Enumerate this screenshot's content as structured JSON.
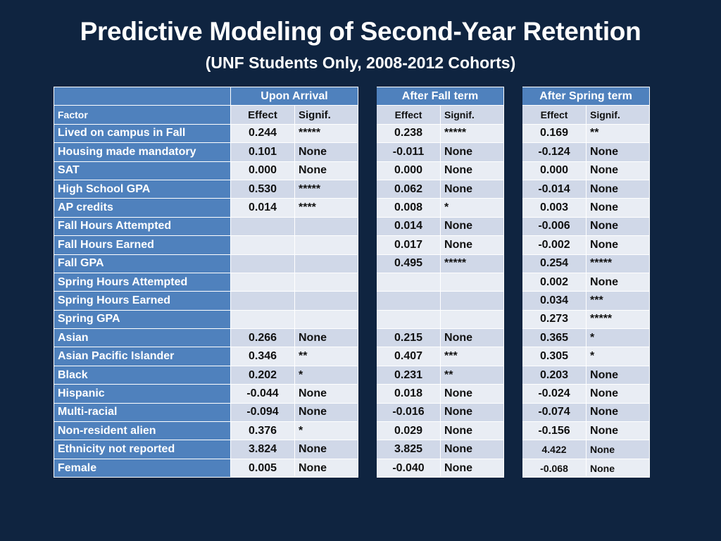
{
  "title": "Predictive Modeling of Second-Year Retention",
  "subtitle": "(UNF Students Only, 2008-2012 Cohorts)",
  "groups": [
    "Upon Arrival",
    "After Fall term",
    "After Spring term"
  ],
  "subheader": {
    "factor": "Factor",
    "effect": "Effect",
    "signif": "Signif."
  },
  "rows": [
    {
      "factor": "Lived on campus in Fall",
      "cells": [
        "0.244",
        "*****",
        "0.238",
        "*****",
        "0.169",
        "**"
      ]
    },
    {
      "factor": "Housing made mandatory",
      "cells": [
        "0.101",
        "None",
        "-0.011",
        "None",
        "-0.124",
        "None"
      ]
    },
    {
      "factor": "SAT",
      "cells": [
        "0.000",
        "None",
        "0.000",
        "None",
        "0.000",
        "None"
      ]
    },
    {
      "factor": "High School GPA",
      "cells": [
        "0.530",
        "*****",
        "0.062",
        "None",
        "-0.014",
        "None"
      ]
    },
    {
      "factor": "AP credits",
      "cells": [
        "0.014",
        "****",
        "0.008",
        "*",
        "0.003",
        "None"
      ]
    },
    {
      "factor": "Fall Hours Attempted",
      "cells": [
        "",
        "",
        "0.014",
        "None",
        "-0.006",
        "None"
      ]
    },
    {
      "factor": "Fall Hours Earned",
      "cells": [
        "",
        "",
        "0.017",
        "None",
        "-0.002",
        "None"
      ]
    },
    {
      "factor": "Fall GPA",
      "cells": [
        "",
        "",
        "0.495",
        "*****",
        "0.254",
        "*****"
      ]
    },
    {
      "factor": "Spring Hours Attempted",
      "cells": [
        "",
        "",
        "",
        "",
        "0.002",
        "None"
      ]
    },
    {
      "factor": "Spring Hours Earned",
      "cells": [
        "",
        "",
        "",
        "",
        "0.034",
        "***"
      ]
    },
    {
      "factor": "Spring GPA",
      "cells": [
        "",
        "",
        "",
        "",
        "0.273",
        "*****"
      ]
    },
    {
      "factor": "Asian",
      "cells": [
        "0.266",
        "None",
        "0.215",
        "None",
        "0.365",
        "*"
      ]
    },
    {
      "factor": "Asian Pacific Islander",
      "cells": [
        "0.346",
        "**",
        "0.407",
        "***",
        "0.305",
        "*"
      ]
    },
    {
      "factor": "Black",
      "cells": [
        "0.202",
        "*",
        "0.231",
        "**",
        "0.203",
        "None"
      ]
    },
    {
      "factor": "Hispanic",
      "cells": [
        "-0.044",
        "None",
        "0.018",
        "None",
        "-0.024",
        "None"
      ]
    },
    {
      "factor": "Multi-racial",
      "cells": [
        "-0.094",
        "None",
        "-0.016",
        "None",
        "-0.074",
        "None"
      ]
    },
    {
      "factor": "Non-resident alien",
      "cells": [
        "0.376",
        "*",
        "0.029",
        "None",
        "-0.156",
        "None"
      ]
    },
    {
      "factor": "Ethnicity not reported",
      "cells": [
        "3.824",
        "None",
        "3.825",
        "None",
        "4.422",
        "None"
      ]
    },
    {
      "factor": "Female",
      "cells": [
        "0.005",
        "None",
        "-0.040",
        "None",
        "-0.068",
        "None"
      ]
    }
  ]
}
